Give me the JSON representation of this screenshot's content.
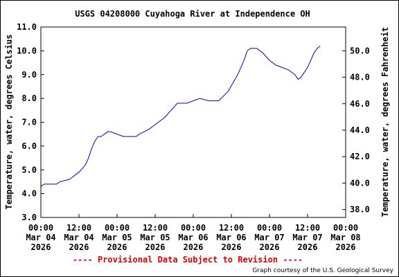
{
  "title": "USGS 04208000 Cuyahoga River at Independence OH",
  "provisional": "---- Provisional Data Subject to Revision ----",
  "credit": "Graph courtesy of the U.S. Geological Survey",
  "colors": {
    "line": "#0000cc",
    "provisional": "#dd0000",
    "axis": "#000000"
  },
  "chart_data": {
    "type": "line",
    "title": "USGS 04208000 Cuyahoga River at Independence OH",
    "ylabel": "Temperature, water, degrees Celsius",
    "y2label": "Temperature, water, degrees Fahrenheit",
    "xlabel": "",
    "ylim": [
      3.0,
      11.0
    ],
    "y2lim": [
      37.4,
      51.8
    ],
    "y_ticks": [
      "3.0",
      "4.0",
      "5.0",
      "6.0",
      "7.0",
      "8.0",
      "9.0",
      "10.0",
      "11.0"
    ],
    "y2_ticks": [
      "38.0",
      "40.0",
      "42.0",
      "44.0",
      "46.0",
      "48.0",
      "50.0"
    ],
    "xlim": [
      "2026-03-04 00:00",
      "2026-03-08 00:00"
    ],
    "x_ticks": [
      {
        "time": "00:00",
        "date": "Mar 04",
        "year": "2026"
      },
      {
        "time": "12:00",
        "date": "Mar 04",
        "year": "2026"
      },
      {
        "time": "00:00",
        "date": "Mar 05",
        "year": "2026"
      },
      {
        "time": "12:00",
        "date": "Mar 05",
        "year": "2026"
      },
      {
        "time": "00:00",
        "date": "Mar 06",
        "year": "2026"
      },
      {
        "time": "12:00",
        "date": "Mar 06",
        "year": "2026"
      },
      {
        "time": "00:00",
        "date": "Mar 07",
        "year": "2026"
      },
      {
        "time": "12:00",
        "date": "Mar 07",
        "year": "2026"
      },
      {
        "time": "00:00",
        "date": "Mar 08",
        "year": "2026"
      }
    ],
    "grid": false,
    "series": [
      {
        "color": "#0000cc",
        "x": [
          "2026-03-04 00:00",
          "2026-03-04 01:00",
          "2026-03-04 05:00",
          "2026-03-04 06:00",
          "2026-03-04 09:00",
          "2026-03-04 10:00",
          "2026-03-04 12:00",
          "2026-03-04 14:00",
          "2026-03-04 15:00",
          "2026-03-04 16:00",
          "2026-03-04 17:00",
          "2026-03-04 18:00",
          "2026-03-04 19:00",
          "2026-03-04 20:00",
          "2026-03-04 21:00",
          "2026-03-04 22:00",
          "2026-03-05 02:00",
          "2026-03-05 06:00",
          "2026-03-05 07:00",
          "2026-03-05 10:00",
          "2026-03-05 13:00",
          "2026-03-05 15:00",
          "2026-03-05 17:00",
          "2026-03-05 19:00",
          "2026-03-05 22:00",
          "2026-03-06 02:00",
          "2026-03-06 05:00",
          "2026-03-06 08:00",
          "2026-03-06 11:00",
          "2026-03-06 14:00",
          "2026-03-06 16:00",
          "2026-03-06 17:00",
          "2026-03-06 18:00",
          "2026-03-06 20:00",
          "2026-03-06 22:00",
          "2026-03-07 00:00",
          "2026-03-07 02:00",
          "2026-03-07 04:00",
          "2026-03-07 06:00",
          "2026-03-07 08:00",
          "2026-03-07 09:00",
          "2026-03-07 10:00",
          "2026-03-07 11:00",
          "2026-03-07 12:00",
          "2026-03-07 13:00",
          "2026-03-07 14:00",
          "2026-03-07 15:00",
          "2026-03-07 16:00"
        ],
        "y": [
          4.3,
          4.4,
          4.4,
          4.5,
          4.6,
          4.7,
          4.9,
          5.2,
          5.5,
          5.9,
          6.2,
          6.4,
          6.4,
          6.5,
          6.6,
          6.6,
          6.4,
          6.4,
          6.5,
          6.7,
          7.0,
          7.2,
          7.5,
          7.8,
          7.8,
          8.0,
          7.9,
          7.9,
          8.3,
          9.0,
          9.6,
          10.0,
          10.1,
          10.1,
          9.9,
          9.6,
          9.4,
          9.3,
          9.2,
          9.0,
          8.8,
          8.9,
          9.1,
          9.3,
          9.6,
          9.9,
          10.1,
          10.2
        ]
      }
    ]
  }
}
